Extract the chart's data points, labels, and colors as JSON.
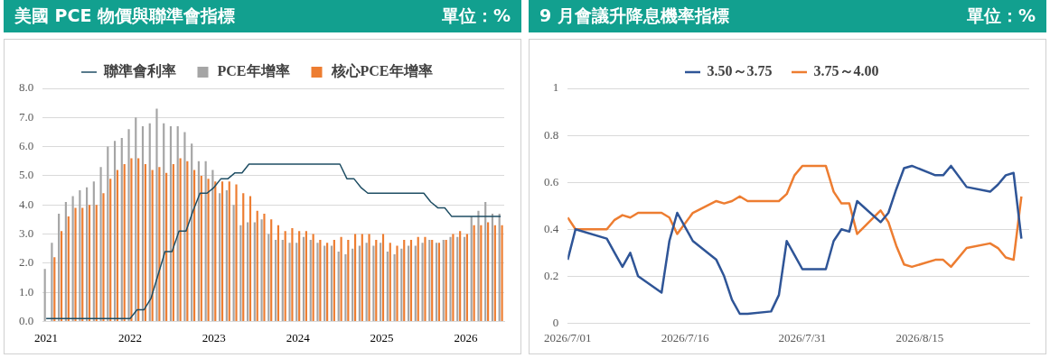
{
  "chart_data": [
    {
      "type": "bar",
      "title": "美國 PCE 物價與聯準會指標",
      "annotations": [
        "單位：%"
      ],
      "categories": [
        "2021",
        null,
        null,
        null,
        null,
        null,
        null,
        null,
        null,
        null,
        null,
        null,
        "2022",
        null,
        null,
        null,
        null,
        null,
        null,
        null,
        null,
        null,
        null,
        null,
        "2023",
        null,
        null,
        null,
        null,
        null,
        null,
        null,
        null,
        null,
        null,
        null,
        "2024",
        null,
        null,
        null,
        null,
        null,
        null,
        null,
        null,
        null,
        null,
        null,
        "2025",
        null,
        null,
        null,
        null,
        null,
        null,
        null,
        null,
        null,
        null,
        null,
        "2026",
        null,
        null,
        null,
        null,
        null
      ],
      "series": [
        {
          "name": "PCE年增率",
          "color": "#a5a5a5",
          "values": [
            1.8,
            2.7,
            3.7,
            4.1,
            4.3,
            4.5,
            4.6,
            4.8,
            5.3,
            6.0,
            6.2,
            6.3,
            6.6,
            7.0,
            6.7,
            6.8,
            7.3,
            6.8,
            6.7,
            6.7,
            6.5,
            6.1,
            5.5,
            5.5,
            5.2,
            4.4,
            4.5,
            4.0,
            3.3,
            3.4,
            3.4,
            3.5,
            3.0,
            2.8,
            2.8,
            2.7,
            2.7,
            2.9,
            2.8,
            2.7,
            2.6,
            2.6,
            2.4,
            2.3,
            2.5,
            2.6,
            2.7,
            2.6,
            2.7,
            2.4,
            2.3,
            2.5,
            2.6,
            2.6,
            2.7,
            2.8,
            2.7,
            2.8,
            2.9,
            2.9,
            2.9,
            3.6,
            3.8,
            4.1,
            3.7,
            3.7
          ]
        },
        {
          "name": "核心PCE年增率",
          "color": "#ed7d31",
          "values": [
            null,
            2.2,
            3.1,
            3.6,
            3.9,
            3.9,
            4.0,
            4.0,
            4.4,
            4.9,
            5.2,
            5.4,
            5.6,
            5.6,
            5.4,
            5.2,
            5.3,
            5.1,
            5.4,
            5.6,
            5.5,
            5.2,
            5.0,
            4.9,
            4.8,
            4.8,
            4.8,
            4.7,
            4.4,
            4.3,
            3.8,
            3.7,
            3.5,
            3.3,
            3.1,
            3.2,
            3.1,
            3.1,
            3.0,
            2.8,
            2.7,
            2.8,
            2.9,
            2.8,
            3.0,
            3.0,
            3.0,
            2.8,
            3.0,
            2.7,
            2.6,
            2.8,
            2.8,
            2.9,
            2.9,
            2.8,
            2.7,
            2.8,
            3.0,
            3.1,
            3.0,
            3.3,
            3.3,
            3.4,
            3.3,
            3.3
          ]
        },
        {
          "name": "聯準會利率",
          "type": "line",
          "color": "#1f4e64",
          "values": [
            0.1,
            0.1,
            0.1,
            0.1,
            0.1,
            0.1,
            0.1,
            0.1,
            0.1,
            0.1,
            0.1,
            0.1,
            0.1,
            0.4,
            0.4,
            0.8,
            1.6,
            2.4,
            2.4,
            3.1,
            3.1,
            3.8,
            4.4,
            4.4,
            4.6,
            4.9,
            4.9,
            5.1,
            5.1,
            5.4,
            5.4,
            5.4,
            5.4,
            5.4,
            5.4,
            5.4,
            5.4,
            5.4,
            5.4,
            5.4,
            5.4,
            5.4,
            5.4,
            4.9,
            4.9,
            4.6,
            4.4,
            4.4,
            4.4,
            4.4,
            4.4,
            4.4,
            4.4,
            4.4,
            4.4,
            4.1,
            3.9,
            3.9,
            3.6,
            3.6,
            3.6,
            3.6,
            3.6,
            3.6,
            3.6,
            3.6
          ]
        }
      ],
      "ylim": [
        0,
        8
      ],
      "yticks": [
        {
          "value": 0,
          "label": "0.0"
        },
        {
          "value": 1,
          "label": "1.0"
        },
        {
          "value": 2,
          "label": "2.0"
        },
        {
          "value": 3,
          "label": "3.0"
        },
        {
          "value": 4,
          "label": "4.0"
        },
        {
          "value": 5,
          "label": "5.0"
        },
        {
          "value": 6,
          "label": "6.0"
        },
        {
          "value": 7,
          "label": "7.0"
        },
        {
          "value": 8,
          "label": "8.0"
        }
      ],
      "grid": "y",
      "legend": "top",
      "marker": "none"
    },
    {
      "type": "line",
      "title": "9 月會議升降息機率指標",
      "annotations": [
        "單位：%"
      ],
      "x": [
        "2026-07-01",
        "2026-07-02",
        "2026-07-06",
        "2026-07-07",
        "2026-07-08",
        "2026-07-09",
        "2026-07-10",
        "2026-07-13",
        "2026-07-14",
        "2026-07-15",
        "2026-07-17",
        "2026-07-20",
        "2026-07-21",
        "2026-07-22",
        "2026-07-23",
        "2026-07-24",
        "2026-07-27",
        "2026-07-28",
        "2026-07-29",
        "2026-07-30",
        "2026-07-31",
        "2026-08-03",
        "2026-08-04",
        "2026-08-05",
        "2026-08-06",
        "2026-08-07",
        "2026-08-10",
        "2026-08-11",
        "2026-08-12",
        "2026-08-13",
        "2026-08-14",
        "2026-08-17",
        "2026-08-18",
        "2026-08-19",
        "2026-08-21",
        "2026-08-24",
        "2026-08-25",
        "2026-08-26",
        "2026-08-27",
        "2026-08-28"
      ],
      "series": [
        {
          "name": "3.50～3.75",
          "color": "#2f5597",
          "values": [
            0.27,
            0.4,
            0.36,
            0.3,
            0.24,
            0.3,
            0.2,
            0.13,
            0.35,
            0.47,
            0.35,
            0.27,
            0.2,
            0.1,
            0.04,
            0.04,
            0.05,
            0.12,
            0.35,
            0.29,
            0.23,
            0.23,
            0.35,
            0.4,
            0.39,
            0.52,
            0.43,
            0.47,
            0.57,
            0.66,
            0.67,
            0.63,
            0.63,
            0.67,
            0.58,
            0.56,
            0.59,
            0.63,
            0.64,
            0.36
          ]
        },
        {
          "name": "3.75～4.00",
          "color": "#ed7d31",
          "values": [
            0.45,
            0.4,
            0.4,
            0.44,
            0.46,
            0.45,
            0.47,
            0.47,
            0.45,
            0.38,
            0.47,
            0.52,
            0.51,
            0.52,
            0.54,
            0.52,
            0.52,
            0.52,
            0.55,
            0.63,
            0.67,
            0.67,
            0.56,
            0.51,
            0.51,
            0.38,
            0.48,
            0.43,
            0.33,
            0.25,
            0.24,
            0.27,
            0.27,
            0.24,
            0.32,
            0.34,
            0.32,
            0.28,
            0.27,
            0.54
          ]
        }
      ],
      "xlim": [
        "2026-07-01",
        "2026-08-29"
      ],
      "xticks": [
        {
          "value": "2026-07-01",
          "label": "2026/7/01"
        },
        {
          "value": "2026-07-16",
          "label": "2026/7/16"
        },
        {
          "value": "2026-07-31",
          "label": "2026/7/31"
        },
        {
          "value": "2026-08-15",
          "label": "2026/8/15"
        }
      ],
      "ylim": [
        0,
        1
      ],
      "yticks": [
        0,
        0.2,
        0.4,
        0.6,
        0.8,
        1
      ],
      "grid": "y",
      "legend": "top",
      "marker": "none"
    }
  ]
}
